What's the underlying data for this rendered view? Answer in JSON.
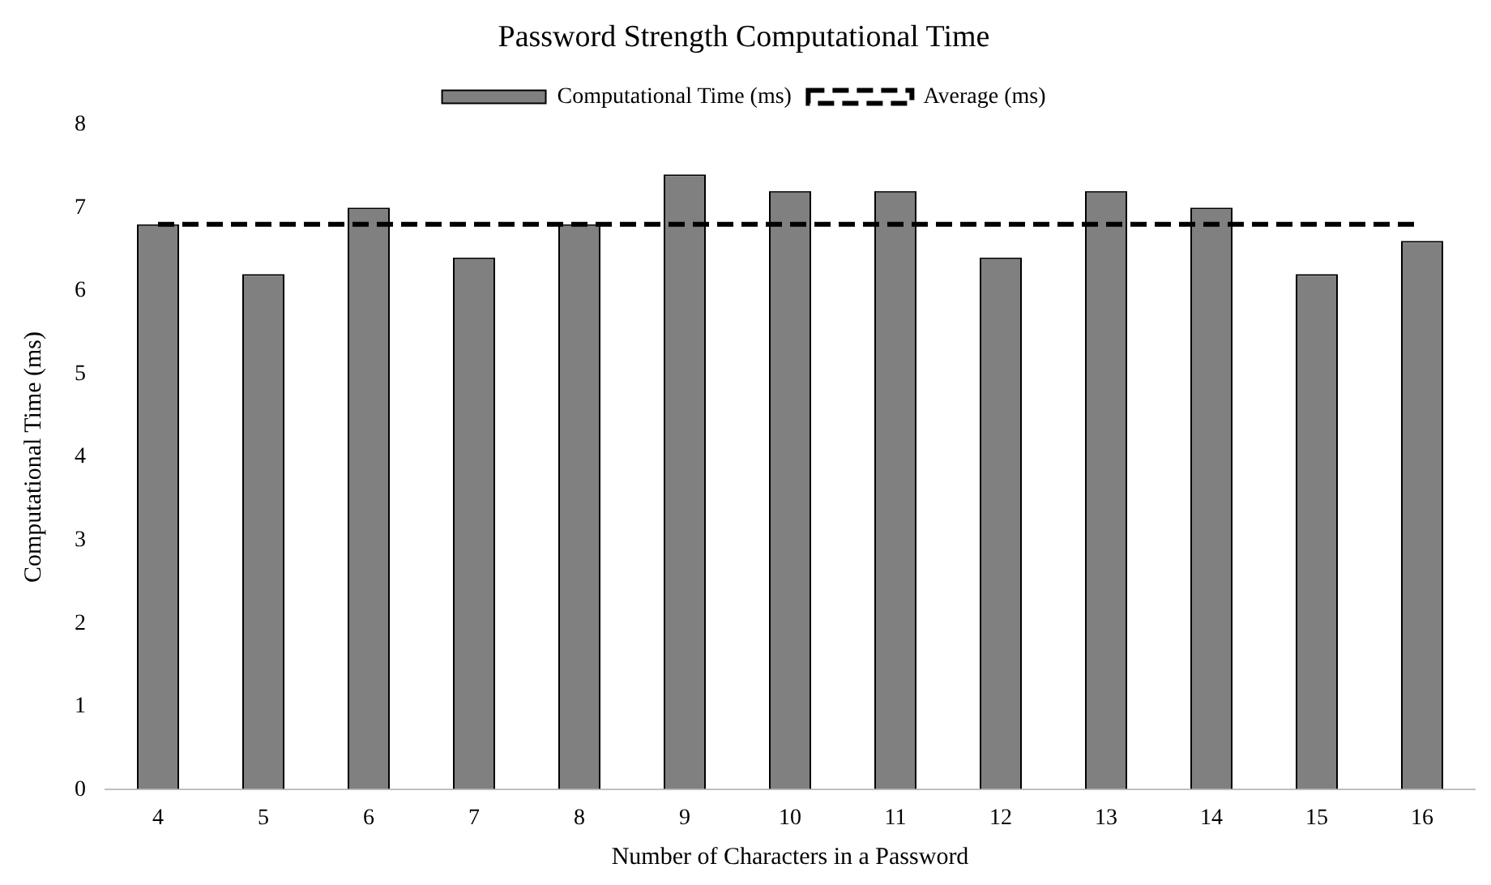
{
  "chart_data": {
    "type": "bar",
    "title": "Password Strength Computational Time",
    "xlabel": "Number of Characters in a Password",
    "ylabel": "Computational Time (ms)",
    "categories": [
      "4",
      "5",
      "6",
      "7",
      "8",
      "9",
      "10",
      "11",
      "12",
      "13",
      "14",
      "15",
      "16"
    ],
    "series": [
      {
        "name": "Computational Time (ms)",
        "color": "#808080",
        "values": [
          6.8,
          6.2,
          7.0,
          6.4,
          6.8,
          7.4,
          7.2,
          7.2,
          6.4,
          7.2,
          7.0,
          6.2,
          6.6
        ]
      },
      {
        "name": "Average (ms)",
        "type": "line",
        "color": "#000000",
        "line_style": "dashed",
        "values": [
          6.8,
          6.8,
          6.8,
          6.8,
          6.8,
          6.8,
          6.8,
          6.8,
          6.8,
          6.8,
          6.8,
          6.8,
          6.8
        ]
      }
    ],
    "ylim": [
      0,
      8
    ],
    "yticks": [
      0,
      1,
      2,
      3,
      4,
      5,
      6,
      7,
      8
    ],
    "grid": false,
    "legend": "top"
  }
}
